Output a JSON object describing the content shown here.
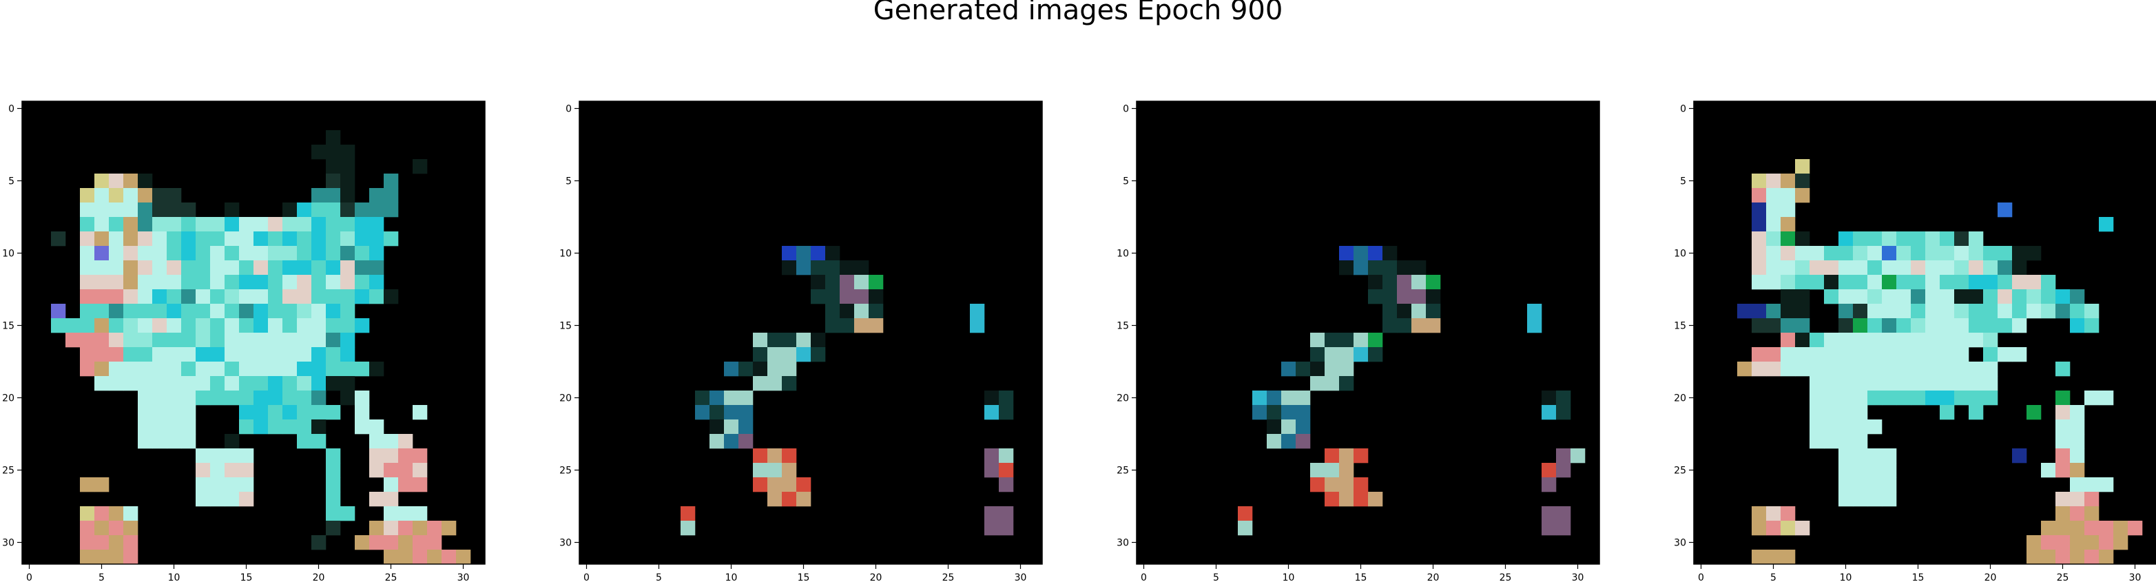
{
  "title": "Generated images Epoch 900",
  "chart_data": {
    "type": "heatmap",
    "title": "Generated images Epoch 900",
    "xlim": [
      -0.5,
      31.5
    ],
    "ylim": [
      31.5,
      -0.5
    ],
    "xticks": [
      0,
      5,
      10,
      15,
      20,
      25,
      30
    ],
    "yticks": [
      0,
      5,
      10,
      15,
      20,
      25,
      30
    ],
    "grid": false,
    "images": [
      {
        "name": "image 1",
        "palette": [
          "#000000",
          "#0c1f1a",
          "#19342e",
          "#2a8f8f",
          "#1fc6d6",
          "#55d6c9",
          "#8fe8da",
          "#b7f2e9",
          "#e3d0c7",
          "#e58e8e",
          "#c6a46b",
          "#2f6fd6",
          "#12a34a",
          "#d4d088",
          "#6b6bd8"
        ],
        "rows": [
          "00000000000000000000000000000000",
          "00000000000000000000000000000000",
          "00000000000000000000010000000000",
          "00000000000000000000111000000000",
          "00000000000000000000011000010000",
          "00000d8a10000000000002100300000",
          "0000d7d7a22000000000331033000000",
          "0000777732220010001455233300000",
          "0000575a36656647786645544000000",
          "00208a7a8754557745454564450000",
          "00007e7877545757766545354000000",
          "0000777a878557758544548330000000",
          "0000888a777557544578578540000000",
          "0000999874537567758855545100000",
          "00e0553555455753455674500000000",
          "00555a56787565754757755400000000",
          "0009998665556577777773400000000",
          "000099955777447777774540000000",
          "00009a777775775777744555100000",
          "000007777777757554564110000000",
          "00000000777755554455301700000000",
          "00000000777700044545550700070000",
          "000000007777000545551007700000",
          "00000000777700100005500077800000",
          "0000000000007777000005008899000",
          "0000000000008788000005008998000",
          "0000aa000000777700000500079900",
          "0000000000007778000005008800000",
          "0000d9a70000000000000550077700",
          "00009a9a0000000000000200a89a9a",
          "000099a9000000000000200a99a99",
          "0000aaa900000000000000000aa9a9a"
        ]
      },
      {
        "name": "image 2",
        "palette": [
          "#000000",
          "#0a1a18",
          "#113a36",
          "#1d6f8f",
          "#1d3fbf",
          "#2fb8d0",
          "#9fd4c8",
          "#7a5a7a",
          "#c8a478",
          "#12a34a",
          "#d64a3a",
          "#3a6a2a",
          "#d7e8e0"
        ],
        "rows": [
          "00000000000000000000000000000000",
          "00000000000000000000000000000000",
          "00000000000000000000000000000000",
          "00000000000000000000000000000000",
          "00000000000000000000000000000000",
          "00000000000000000000000000000000",
          "00000000000000000000000000000000",
          "00000000000000000000000000000000",
          "00000000000000000000000000000000",
          "00000000000000000000000000000000",
          "00000000000000434100000000000000",
          "00000000000000132211000000000000",
          "00000000000000001276900000000000",
          "00000000000000002277100000000000",
          "00000000000000000216200000050000",
          "00000000000000000228800000050000",
          "00000000000062261000000000000000",
          "00000000000026652000000000000000",
          "00000000003216600000000000000000",
          "00000000000066200000000000000000",
          "00000000236600000000000000001200",
          "00000000323300000000000000005200",
          "00000000016300000000000000000000",
          "00000000063700000000000000000000",
          "000000000000a8a000000000000076000",
          "00000000000066800000000000007a00",
          "000000000000a88a000000000000070000",
          "00000000000008a800000000000000000",
          "0000000a0000000000000000000077000",
          "00000006000000000000000000007700",
          "00000000000000000000000000000000",
          "00000000000000000000000000000000"
        ]
      },
      {
        "name": "image 3",
        "palette": [
          "#000000",
          "#0a1a18",
          "#113a36",
          "#1d6f8f",
          "#1d3fbf",
          "#2fb8d0",
          "#9fd4c8",
          "#7a5a7a",
          "#c8a478",
          "#12a34a",
          "#d64a3a",
          "#3a6a2a",
          "#d7e8e0"
        ],
        "rows": [
          "00000000000000000000000000000000",
          "00000000000000000000000000000000",
          "00000000000000000000000000000000",
          "00000000000000000000000000000000",
          "00000000000000000000000000000000",
          "00000000000000000000000000000000",
          "00000000000000000000000000000000",
          "00000000000000000000000000000000",
          "00000000000000000000000000000000",
          "00000000000000000000000000000000",
          "00000000000000434100000000000000",
          "00000000000000132211000000000000",
          "00000000000000001276900000000000",
          "00000000000000002277100000000000",
          "00000000000000000216200000050000",
          "00000000000000000228800000050000",
          "00000000000062269000000000000000",
          "00000000000026652000000000000000",
          "00000000003216600000000000000000",
          "00000000000066200000000000000000",
          "00000000536600000000000000001200",
          "00000000323300000000000000005200",
          "00000000016300000000000000000000",
          "00000000063700000000000000000000",
          "0000000000000a8a0000000000000760",
          "0000000000006680000000000000a700",
          "000000000000a88a00000000000070000",
          "0000000000000a8a800000000000000000",
          "0000000a000000000000000000007700",
          "00000006000000000000000000007700",
          "00000000000000000000000000000000",
          "00000000000000000000000000000000"
        ]
      },
      {
        "name": "image 4",
        "palette": [
          "#000000",
          "#0c1f1a",
          "#19342e",
          "#2a8f8f",
          "#1fc6d6",
          "#55d6c9",
          "#8fe8da",
          "#b7f2e9",
          "#e3d0c7",
          "#e58e8e",
          "#c6a46b",
          "#2f6fd6",
          "#12a34a",
          "#d4d088",
          "#1a2f8f"
        ],
        "rows": [
          "00000000000000000000000000000000",
          "00000000000000000000000000000000",
          "00000000000000000000000000000000",
          "00000000000000000000000000000000",
          "0000000d00000000000000000000000",
          "0000d8a20000000000000000000000000",
          "0000977a0000000000000000000000000",
          "0000e7700000000000000b000000000",
          "0000e7a0000000000000000000004000",
          "000086c1004556556526000000000",
          "0000878775567b6566765511000000",
          "000087768877577877686310000000",
          "0000776551557c5575544588500000",
          "00000011057767737711585654300000",
          "000ee311003277757765575763560000",
          "00002233002c535677755570004500000",
          "00000091577777777777600000000000",
          "00009977777777777770577000000000",
          "000a8877777777777777700005000000",
          "000000007777777777777000000000",
          "0000000077775555445550000c0770000",
          "00000000777700000505000c0870000",
          "000000007777700000000000077000",
          "0000000077770000000000000770000",
          "0000000000777700000000e0097000",
          "00000000007777000000000079a000",
          "000000000077770000000000007770",
          "000000000077770000000000088900",
          "0000a89000000000000000000a9a0",
          "0000a9d80000000000000000aaa99a9",
          "00000000000000000000000a99aa9a",
          "0000aaa0000000000000000aa9a9a"
        ]
      }
    ]
  }
}
